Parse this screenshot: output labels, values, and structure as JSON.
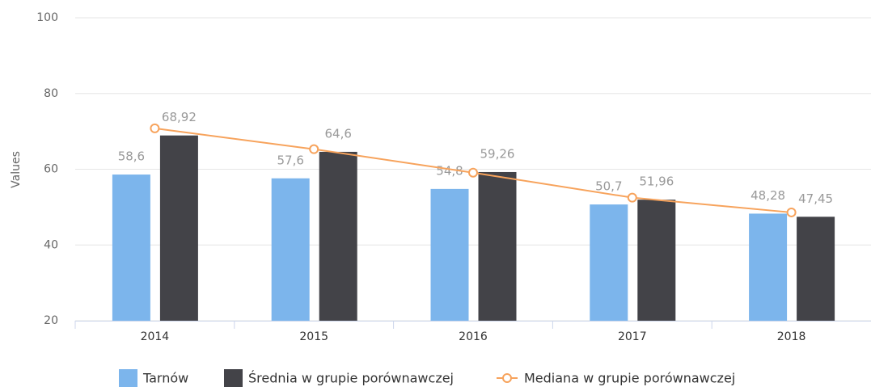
{
  "chart_data": {
    "type": "bar",
    "y_label": "Values",
    "categories": [
      "2014",
      "2015",
      "2016",
      "2017",
      "2018"
    ],
    "series": [
      {
        "name": "Tarnów",
        "color": "#7cb5ec",
        "type": "bar",
        "values": [
          58.6,
          57.6,
          54.8,
          50.7,
          48.28
        ],
        "value_labels": [
          "58,6",
          "57,6",
          "54,8",
          "50,7",
          "48,28"
        ]
      },
      {
        "name": "Średnia w grupie porównawczej",
        "color": "#434348",
        "type": "bar",
        "values": [
          68.92,
          64.6,
          59.26,
          51.96,
          47.45
        ],
        "value_labels": [
          "68,92",
          "64,6",
          "59,26",
          "51,96",
          "47,45"
        ]
      },
      {
        "name": "Mediana w grupie porównawczej",
        "color": "#f7a35c",
        "type": "line",
        "values": [
          70.8,
          65.3,
          59.1,
          52.5,
          48.6
        ]
      }
    ],
    "ylim": [
      20,
      100
    ],
    "yticks": [
      20,
      40,
      60,
      80,
      100
    ],
    "grid": true,
    "legend": "bottom"
  }
}
